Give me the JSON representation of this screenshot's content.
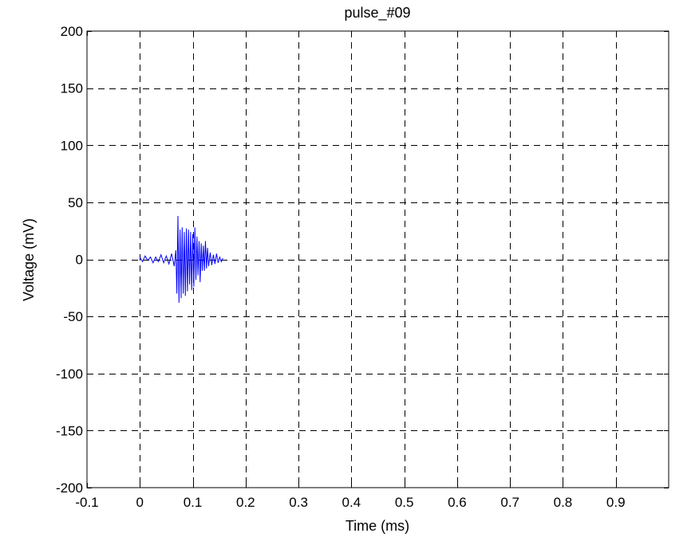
{
  "chart_data": {
    "type": "line",
    "title": "pulse_#09",
    "xlabel": "Time (ms)",
    "ylabel": "Voltage (mV)",
    "xlim": [
      -0.1,
      1.0
    ],
    "ylim": [
      -200,
      200
    ],
    "xticks": [
      -0.1,
      0,
      0.1,
      0.2,
      0.3,
      0.4,
      0.5,
      0.6,
      0.7,
      0.8,
      0.9
    ],
    "xtick_labels": [
      "-0.1",
      "0",
      "0.1",
      "0.2",
      "0.3",
      "0.4",
      "0.5",
      "0.6",
      "0.7",
      "0.8",
      "0.9"
    ],
    "yticks": [
      200,
      150,
      100,
      50,
      0,
      -50,
      -100,
      -150,
      -200
    ],
    "ytick_labels": [
      "200",
      "150",
      "100",
      "50",
      "0",
      "-50",
      "-100",
      "-150",
      "-200"
    ],
    "grid": true,
    "grid_style": "dashed",
    "series": [
      {
        "color": "#0000ff",
        "x": [
          0.0,
          0.005,
          0.01,
          0.015,
          0.02,
          0.025,
          0.03,
          0.035,
          0.04,
          0.045,
          0.05,
          0.055,
          0.06,
          0.065,
          0.068,
          0.07,
          0.072,
          0.074,
          0.076,
          0.078,
          0.08,
          0.082,
          0.084,
          0.086,
          0.088,
          0.09,
          0.092,
          0.094,
          0.096,
          0.098,
          0.1,
          0.102,
          0.104,
          0.106,
          0.108,
          0.11,
          0.112,
          0.114,
          0.116,
          0.118,
          0.12,
          0.122,
          0.124,
          0.126,
          0.128,
          0.13,
          0.133,
          0.136,
          0.139,
          0.142,
          0.145,
          0.148,
          0.151,
          0.154,
          0.157
        ],
        "y": [
          2,
          -2,
          3,
          -1,
          2,
          -3,
          2,
          -2,
          4,
          -3,
          3,
          -4,
          5,
          -6,
          8,
          -30,
          38,
          -38,
          26,
          -34,
          28,
          -30,
          24,
          -32,
          27,
          -28,
          26,
          -22,
          24,
          -27,
          22,
          -24,
          28,
          -18,
          20,
          -14,
          16,
          -20,
          14,
          -10,
          12,
          -10,
          16,
          -8,
          10,
          -6,
          6,
          -5,
          4,
          -4,
          5,
          -3,
          2,
          -2,
          1
        ]
      }
    ]
  }
}
